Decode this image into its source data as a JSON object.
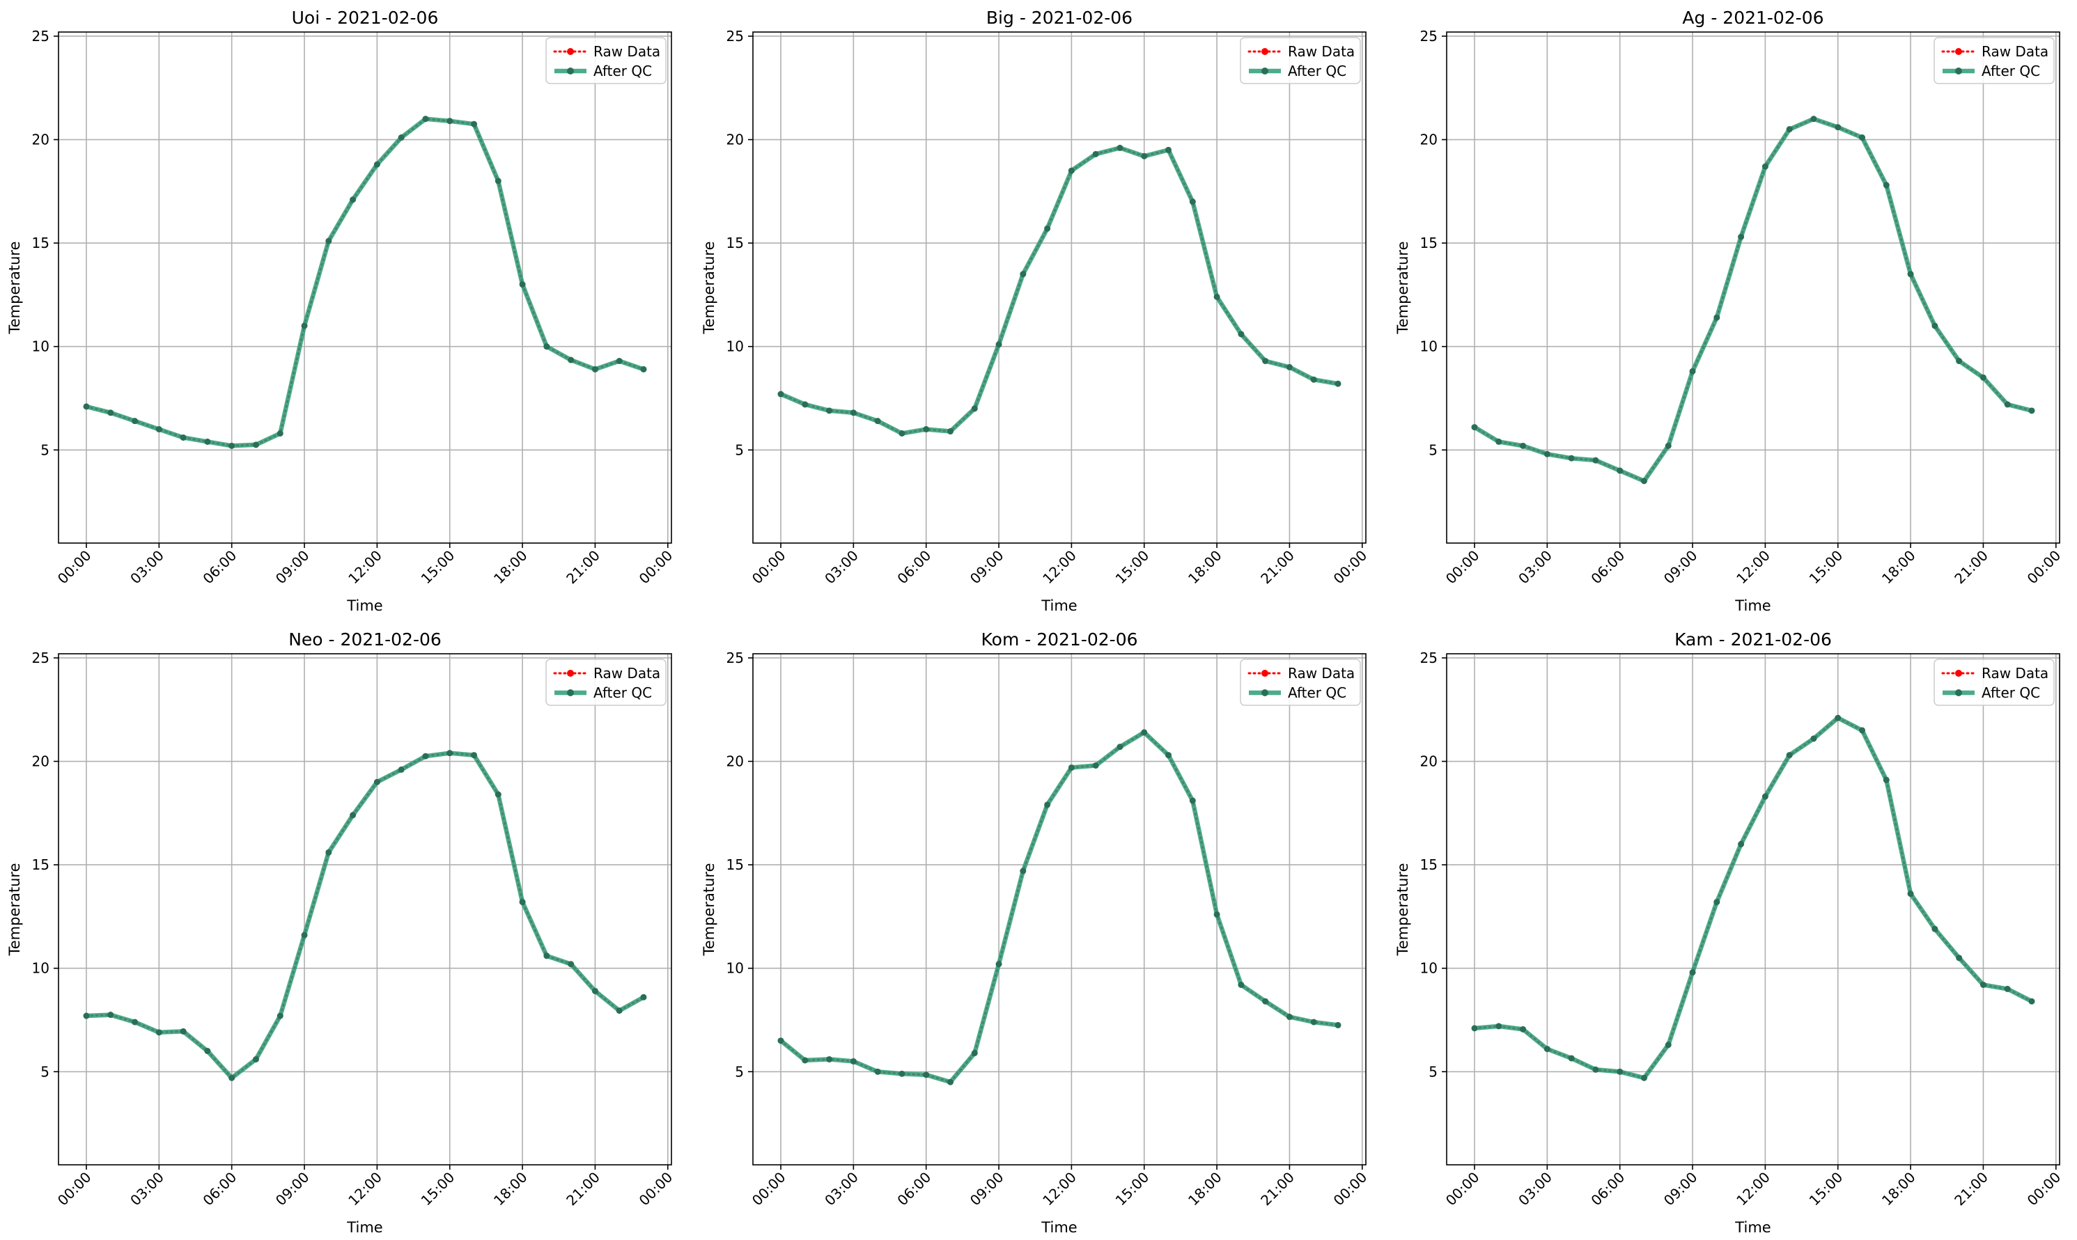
{
  "colors": {
    "raw": "#ff0000",
    "qc": "#2a9d78",
    "grid": "#b0b0b0",
    "axes": "#000000"
  },
  "shared": {
    "xlabel": "Time",
    "ylabel": "Temperature",
    "xticks": [
      "00:00",
      "03:00",
      "06:00",
      "09:00",
      "12:00",
      "15:00",
      "18:00",
      "21:00",
      "00:00"
    ],
    "xtick_hours": [
      0,
      3,
      6,
      9,
      12,
      15,
      18,
      21,
      24
    ],
    "yticks": [
      5,
      10,
      15,
      20,
      25
    ],
    "xlim": [
      -1.15,
      24.15
    ],
    "ylim": [
      0.5,
      25.2
    ],
    "legend": [
      "Raw Data",
      "After QC"
    ],
    "legend_loc": "upper right",
    "grid": true
  },
  "chart_data": [
    {
      "type": "line",
      "title": "Uoi - 2021-02-06",
      "x": [
        0,
        1,
        2,
        3,
        4,
        5,
        6,
        7,
        8,
        9,
        10,
        11,
        12,
        13,
        14,
        15,
        16,
        17,
        18,
        19,
        20,
        21,
        22,
        23
      ],
      "series": [
        {
          "name": "Raw Data",
          "values": [
            7.1,
            6.8,
            6.4,
            6.0,
            5.6,
            5.4,
            5.2,
            5.25,
            5.8,
            11.0,
            15.1,
            17.1,
            18.8,
            20.1,
            21.0,
            20.9,
            20.75,
            18.0,
            13.0,
            10.0,
            9.35,
            8.9,
            9.3,
            8.9
          ]
        },
        {
          "name": "After QC",
          "values": [
            7.1,
            6.8,
            6.4,
            6.0,
            5.6,
            5.4,
            5.2,
            5.25,
            5.8,
            11.0,
            15.1,
            17.1,
            18.8,
            20.1,
            21.0,
            20.9,
            20.75,
            18.0,
            13.0,
            10.0,
            9.35,
            8.9,
            9.3,
            8.9
          ]
        }
      ]
    },
    {
      "type": "line",
      "title": "Big - 2021-02-06",
      "x": [
        0,
        1,
        2,
        3,
        4,
        5,
        6,
        7,
        8,
        9,
        10,
        11,
        12,
        13,
        14,
        15,
        16,
        17,
        18,
        19,
        20,
        21,
        22,
        23
      ],
      "series": [
        {
          "name": "Raw Data",
          "values": [
            7.7,
            7.2,
            6.9,
            6.8,
            6.4,
            5.8,
            6.0,
            5.9,
            7.0,
            10.1,
            13.5,
            15.7,
            18.5,
            19.3,
            19.6,
            19.2,
            19.5,
            17.0,
            12.4,
            10.6,
            9.3,
            9.0,
            8.4,
            8.2
          ]
        },
        {
          "name": "After QC",
          "values": [
            7.7,
            7.2,
            6.9,
            6.8,
            6.4,
            5.8,
            6.0,
            5.9,
            7.0,
            10.1,
            13.5,
            15.7,
            18.5,
            19.3,
            19.6,
            19.2,
            19.5,
            17.0,
            12.4,
            10.6,
            9.3,
            9.0,
            8.4,
            8.2
          ]
        }
      ]
    },
    {
      "type": "line",
      "title": "Ag - 2021-02-06",
      "x": [
        0,
        1,
        2,
        3,
        4,
        5,
        6,
        7,
        8,
        9,
        10,
        11,
        12,
        13,
        14,
        15,
        16,
        17,
        18,
        19,
        20,
        21,
        22,
        23
      ],
      "series": [
        {
          "name": "Raw Data",
          "values": [
            6.1,
            5.4,
            5.2,
            4.8,
            4.6,
            4.5,
            4.0,
            3.5,
            5.2,
            8.8,
            11.4,
            15.3,
            18.7,
            20.5,
            21.0,
            20.6,
            20.1,
            17.8,
            13.5,
            11.0,
            9.3,
            8.5,
            7.2,
            6.9
          ]
        },
        {
          "name": "After QC",
          "values": [
            6.1,
            5.4,
            5.2,
            4.8,
            4.6,
            4.5,
            4.0,
            3.5,
            5.2,
            8.8,
            11.4,
            15.3,
            18.7,
            20.5,
            21.0,
            20.6,
            20.1,
            17.8,
            13.5,
            11.0,
            9.3,
            8.5,
            7.2,
            6.9
          ]
        }
      ]
    },
    {
      "type": "line",
      "title": "Neo - 2021-02-06",
      "x": [
        0,
        1,
        2,
        3,
        4,
        5,
        6,
        7,
        8,
        9,
        10,
        11,
        12,
        13,
        14,
        15,
        16,
        17,
        18,
        19,
        20,
        21,
        22,
        23
      ],
      "series": [
        {
          "name": "Raw Data",
          "values": [
            7.7,
            7.75,
            7.4,
            6.9,
            6.95,
            6.0,
            4.7,
            5.6,
            7.7,
            11.6,
            15.6,
            17.4,
            19.0,
            19.6,
            20.25,
            20.4,
            20.3,
            18.4,
            13.2,
            10.6,
            10.2,
            8.9,
            7.95,
            8.6
          ]
        },
        {
          "name": "After QC",
          "values": [
            7.7,
            7.75,
            7.4,
            6.9,
            6.95,
            6.0,
            4.7,
            5.6,
            7.7,
            11.6,
            15.6,
            17.4,
            19.0,
            19.6,
            20.25,
            20.4,
            20.3,
            18.4,
            13.2,
            10.6,
            10.2,
            8.9,
            7.95,
            8.6
          ]
        }
      ]
    },
    {
      "type": "line",
      "title": "Kom - 2021-02-06",
      "x": [
        0,
        1,
        2,
        3,
        4,
        5,
        6,
        7,
        8,
        9,
        10,
        11,
        12,
        13,
        14,
        15,
        16,
        17,
        18,
        19,
        20,
        21,
        22,
        23
      ],
      "series": [
        {
          "name": "Raw Data",
          "values": [
            6.5,
            5.55,
            5.6,
            5.5,
            5.0,
            4.9,
            4.85,
            4.5,
            5.9,
            10.2,
            14.7,
            17.9,
            19.7,
            19.8,
            20.7,
            21.4,
            20.3,
            18.1,
            12.6,
            9.2,
            8.4,
            7.65,
            7.4,
            7.25
          ]
        },
        {
          "name": "After QC",
          "values": [
            6.5,
            5.55,
            5.6,
            5.5,
            5.0,
            4.9,
            4.85,
            4.5,
            5.9,
            10.2,
            14.7,
            17.9,
            19.7,
            19.8,
            20.7,
            21.4,
            20.3,
            18.1,
            12.6,
            9.2,
            8.4,
            7.65,
            7.4,
            7.25
          ]
        }
      ]
    },
    {
      "type": "line",
      "title": "Kam - 2021-02-06",
      "x": [
        0,
        1,
        2,
        3,
        4,
        5,
        6,
        7,
        8,
        9,
        10,
        11,
        12,
        13,
        14,
        15,
        16,
        17,
        18,
        19,
        20,
        21,
        22,
        23
      ],
      "series": [
        {
          "name": "Raw Data",
          "values": [
            7.1,
            7.2,
            7.05,
            6.1,
            5.65,
            5.1,
            5.0,
            4.7,
            6.3,
            9.8,
            13.2,
            16.0,
            18.3,
            20.3,
            21.1,
            22.1,
            21.5,
            19.1,
            13.6,
            11.9,
            10.5,
            9.2,
            9.0,
            8.4
          ]
        },
        {
          "name": "After QC",
          "values": [
            7.1,
            7.2,
            7.05,
            6.1,
            5.65,
            5.1,
            5.0,
            4.7,
            6.3,
            9.8,
            13.2,
            16.0,
            18.3,
            20.3,
            21.1,
            22.1,
            21.5,
            19.1,
            13.6,
            11.9,
            10.5,
            9.2,
            9.0,
            8.4
          ]
        }
      ]
    }
  ]
}
